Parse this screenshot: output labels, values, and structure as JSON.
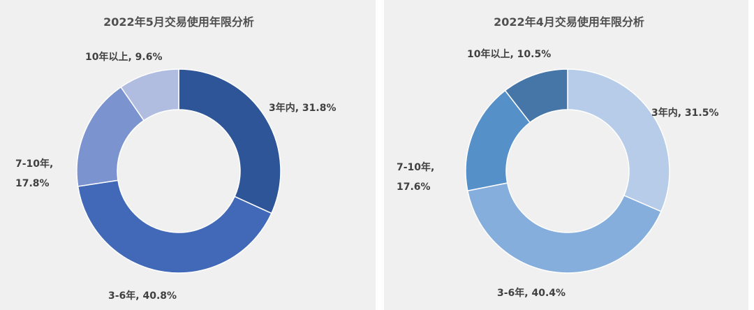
{
  "chart_data": [
    {
      "type": "donut",
      "title": "2022年5月交易使用年限分析",
      "categories": [
        "3年内",
        "3-6年",
        "7-10年",
        "10年以上"
      ],
      "values": [
        31.8,
        40.8,
        17.8,
        9.6
      ],
      "value_labels": [
        "3年内, 31.8%",
        "3-6年, 40.8%",
        "7-10年, 17.8%",
        "10年以上, 9.6%"
      ],
      "colors": [
        "#2e5597",
        "#4169b8",
        "#7b93cf",
        "#b1bde0"
      ]
    },
    {
      "type": "donut",
      "title": "2022年4月交易使用年限分析",
      "categories": [
        "3年内",
        "3-6年",
        "7-10年",
        "10年以上"
      ],
      "values": [
        31.5,
        40.4,
        17.6,
        10.5
      ],
      "value_labels": [
        "3年内, 31.5%",
        "3-6年, 40.4%",
        "7-10年, 17.6%",
        "10年以上, 10.5%"
      ],
      "colors": [
        "#b7cce8",
        "#85aedc",
        "#5590c8",
        "#4676a7"
      ]
    }
  ]
}
